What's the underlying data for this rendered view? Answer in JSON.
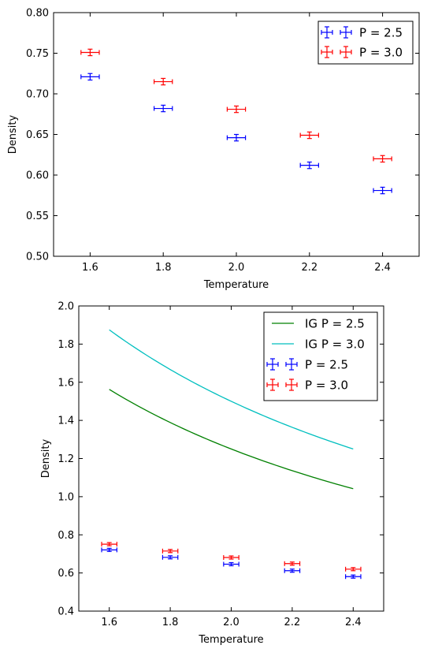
{
  "chart_data": [
    {
      "type": "scatter",
      "xlabel": "Temperature",
      "ylabel": "Density",
      "xlim": [
        1.5,
        2.5
      ],
      "ylim": [
        0.5,
        0.8
      ],
      "xticks": [
        "1.6",
        "1.8",
        "2.0",
        "2.2",
        "2.4"
      ],
      "yticks": [
        "0.50",
        "0.55",
        "0.60",
        "0.65",
        "0.70",
        "0.75",
        "0.80"
      ],
      "legend_position": "top-right",
      "series": [
        {
          "name": "P = 2.5",
          "color": "#0000ff",
          "style": "errorbar",
          "x": [
            1.6,
            1.8,
            2.0,
            2.2,
            2.4
          ],
          "y": [
            0.721,
            0.682,
            0.646,
            0.612,
            0.581
          ],
          "xerr": 0.025,
          "yerr": 0.004
        },
        {
          "name": "P = 3.0",
          "color": "#ff0000",
          "style": "errorbar",
          "x": [
            1.6,
            1.8,
            2.0,
            2.2,
            2.4
          ],
          "y": [
            0.751,
            0.715,
            0.681,
            0.649,
            0.62
          ],
          "xerr": 0.025,
          "yerr": 0.004
        }
      ]
    },
    {
      "type": "line",
      "xlabel": "Temperature",
      "ylabel": "Density",
      "xlim": [
        1.5,
        2.5
      ],
      "ylim": [
        0.4,
        2.0
      ],
      "xticks": [
        "1.6",
        "1.8",
        "2.0",
        "2.2",
        "2.4"
      ],
      "yticks": [
        "0.4",
        "0.6",
        "0.8",
        "1.0",
        "1.2",
        "1.4",
        "1.6",
        "1.8",
        "2.0"
      ],
      "legend_position": "top-right",
      "series": [
        {
          "name": "IG P = 2.5",
          "color": "#008000",
          "style": "line",
          "x": [
            1.6,
            1.8,
            2.0,
            2.2,
            2.4
          ],
          "y": [
            1.5625,
            1.3889,
            1.25,
            1.1364,
            1.0417
          ]
        },
        {
          "name": "IG P = 3.0",
          "color": "#00bfbf",
          "style": "line",
          "x": [
            1.6,
            1.8,
            2.0,
            2.2,
            2.4
          ],
          "y": [
            1.875,
            1.6667,
            1.5,
            1.3636,
            1.25
          ]
        },
        {
          "name": "P = 2.5",
          "color": "#0000ff",
          "style": "errorbar",
          "x": [
            1.6,
            1.8,
            2.0,
            2.2,
            2.4
          ],
          "y": [
            0.721,
            0.682,
            0.646,
            0.612,
            0.581
          ],
          "xerr": 0.025,
          "yerr": 0.004
        },
        {
          "name": "P = 3.0",
          "color": "#ff0000",
          "style": "errorbar",
          "x": [
            1.6,
            1.8,
            2.0,
            2.2,
            2.4
          ],
          "y": [
            0.751,
            0.715,
            0.681,
            0.649,
            0.62
          ],
          "xerr": 0.025,
          "yerr": 0.004
        }
      ]
    }
  ]
}
